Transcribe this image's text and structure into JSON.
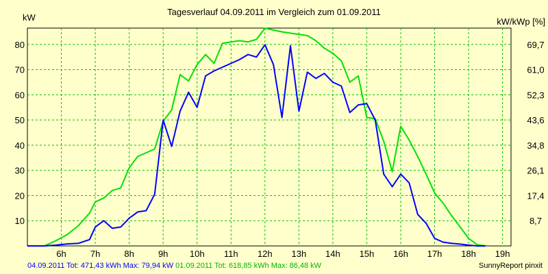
{
  "chart_data": {
    "type": "line",
    "title": "Tagesverlauf 04.09.2011 im Vergleich zum 01.09.2011",
    "y_left_label": "kW",
    "y_right_label": "kW/kWp [%]",
    "x_ticks": [
      "6h",
      "7h",
      "8h",
      "9h",
      "10h",
      "11h",
      "12h",
      "13h",
      "14h",
      "15h",
      "16h",
      "17h",
      "18h",
      "19h"
    ],
    "x_tick_hours": [
      6,
      7,
      8,
      9,
      10,
      11,
      12,
      13,
      14,
      15,
      16,
      17,
      18,
      19
    ],
    "xlim": [
      5,
      19.25
    ],
    "y_left_ticks": [
      10,
      20,
      30,
      40,
      50,
      60,
      70,
      80
    ],
    "y_right_ticks": [
      "8,7",
      "17,4",
      "26,1",
      "34,8",
      "43,6",
      "52,3",
      "61,0",
      "69,7"
    ],
    "ylim": [
      0,
      86.5
    ],
    "grid": true,
    "series": [
      {
        "name": "04.09.2011",
        "color": "#0000ff",
        "points": [
          [
            5.0,
            0
          ],
          [
            5.5,
            0
          ],
          [
            5.83,
            0.3
          ],
          [
            6.17,
            0.8
          ],
          [
            6.5,
            1
          ],
          [
            6.83,
            2.5
          ],
          [
            7.0,
            7.5
          ],
          [
            7.25,
            10
          ],
          [
            7.5,
            7
          ],
          [
            7.75,
            7.5
          ],
          [
            8.0,
            11
          ],
          [
            8.25,
            13.5
          ],
          [
            8.5,
            14
          ],
          [
            8.75,
            20.5
          ],
          [
            9.0,
            50
          ],
          [
            9.25,
            39.5
          ],
          [
            9.5,
            53.5
          ],
          [
            9.75,
            61
          ],
          [
            10.0,
            55
          ],
          [
            10.25,
            67.5
          ],
          [
            10.5,
            69.5
          ],
          [
            10.75,
            71
          ],
          [
            11.0,
            72.5
          ],
          [
            11.25,
            74
          ],
          [
            11.5,
            76
          ],
          [
            11.75,
            75
          ],
          [
            12.0,
            79.9
          ],
          [
            12.25,
            72
          ],
          [
            12.5,
            51
          ],
          [
            12.75,
            79.5
          ],
          [
            13.0,
            53.5
          ],
          [
            13.25,
            69
          ],
          [
            13.5,
            66.5
          ],
          [
            13.75,
            68.5
          ],
          [
            14.0,
            65
          ],
          [
            14.25,
            63.5
          ],
          [
            14.5,
            53
          ],
          [
            14.75,
            56
          ],
          [
            15.0,
            56.5
          ],
          [
            15.25,
            50
          ],
          [
            15.5,
            28.5
          ],
          [
            15.75,
            23.5
          ],
          [
            16.0,
            28.5
          ],
          [
            16.25,
            25
          ],
          [
            16.5,
            12.5
          ],
          [
            16.75,
            9
          ],
          [
            17.0,
            3
          ],
          [
            17.25,
            1.5
          ],
          [
            17.5,
            1
          ],
          [
            17.75,
            0.7
          ],
          [
            18.0,
            0.3
          ],
          [
            18.25,
            0
          ],
          [
            18.5,
            0
          ]
        ]
      },
      {
        "name": "01.09.2011",
        "color": "#00e000",
        "points": [
          [
            5.0,
            0
          ],
          [
            5.5,
            0
          ],
          [
            5.83,
            2
          ],
          [
            6.17,
            4.5
          ],
          [
            6.5,
            8
          ],
          [
            6.83,
            13
          ],
          [
            7.0,
            17.5
          ],
          [
            7.25,
            19
          ],
          [
            7.5,
            22
          ],
          [
            7.75,
            23
          ],
          [
            8.0,
            31
          ],
          [
            8.25,
            35.5
          ],
          [
            8.5,
            37
          ],
          [
            8.75,
            38.5
          ],
          [
            9.0,
            49.5
          ],
          [
            9.25,
            54
          ],
          [
            9.5,
            68
          ],
          [
            9.75,
            65.5
          ],
          [
            10.0,
            72
          ],
          [
            10.25,
            76
          ],
          [
            10.5,
            72.5
          ],
          [
            10.75,
            80.5
          ],
          [
            11.0,
            81
          ],
          [
            11.25,
            81.5
          ],
          [
            11.5,
            81
          ],
          [
            11.75,
            82
          ],
          [
            12.0,
            86.48
          ],
          [
            12.5,
            85
          ],
          [
            12.75,
            84.5
          ],
          [
            13.0,
            84
          ],
          [
            13.25,
            83.5
          ],
          [
            13.5,
            81.5
          ],
          [
            13.75,
            78.5
          ],
          [
            14.0,
            76.5
          ],
          [
            14.25,
            73.5
          ],
          [
            14.5,
            65
          ],
          [
            14.75,
            67.5
          ],
          [
            15.0,
            51
          ],
          [
            15.25,
            50.5
          ],
          [
            15.5,
            41.5
          ],
          [
            15.75,
            29.5
          ],
          [
            16.0,
            47.5
          ],
          [
            16.25,
            42
          ],
          [
            16.5,
            35.5
          ],
          [
            16.75,
            28.5
          ],
          [
            17.0,
            21
          ],
          [
            17.25,
            17
          ],
          [
            17.5,
            12
          ],
          [
            17.75,
            7.5
          ],
          [
            18.0,
            3
          ],
          [
            18.25,
            0.5
          ],
          [
            18.5,
            0
          ]
        ]
      }
    ]
  },
  "footer": {
    "series1_stats": "04.09.2011 Tot: 471,43 kWh Max: 79,94 kW",
    "series2_stats": "01.09.2011 Tot: 618,85 kWh Max: 86,48 kW",
    "credit": "SunnyReport pinxit"
  }
}
